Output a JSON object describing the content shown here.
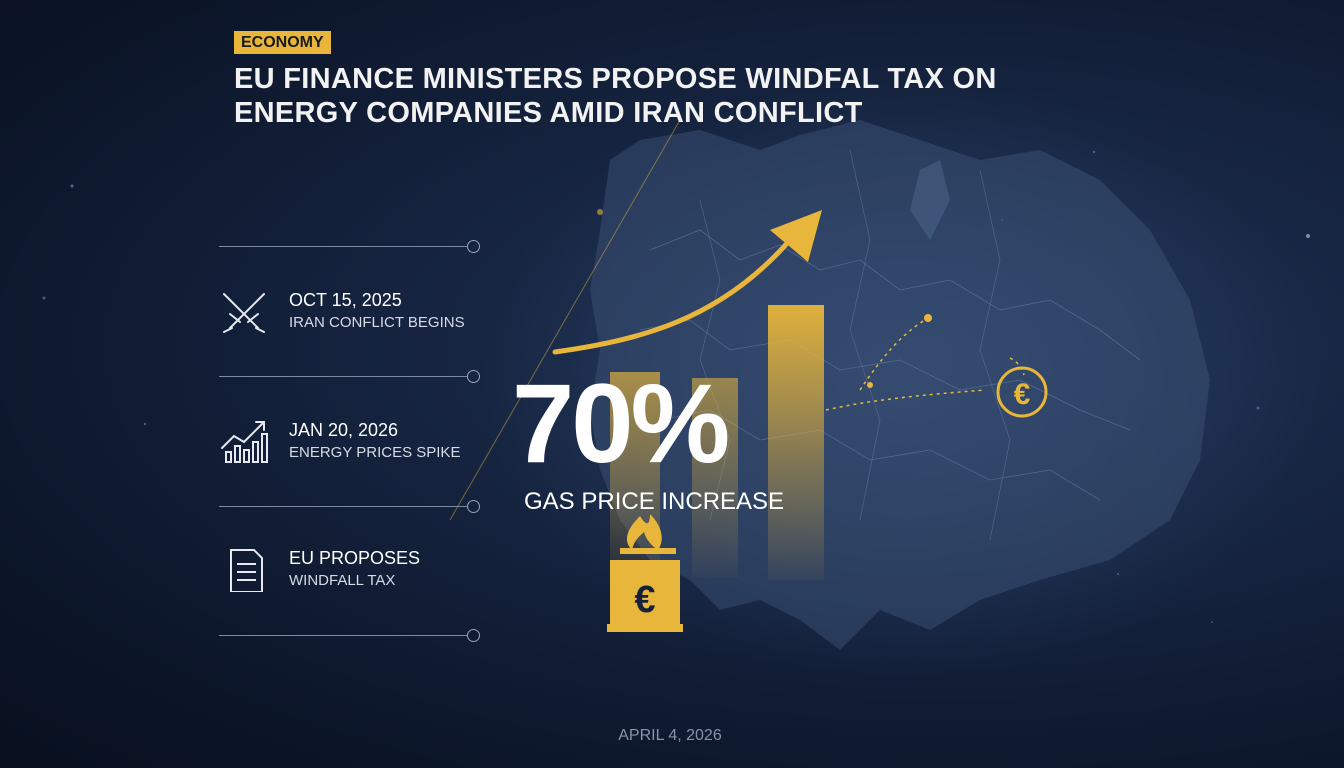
{
  "category": "ECONOMY",
  "headline": "EU FINANCE MINISTERS PROPOSE WINDFAL TAX ON ENERGY COMPANIES AMID IRAN CONFLICT",
  "timeline": [
    {
      "date": "OCT 15, 2025",
      "description": "IRAN CONFLICT BEGINS",
      "icon": "crossed-swords-icon"
    },
    {
      "date": "JAN 20, 2026",
      "description": "ENERGY PRICES SPIKE",
      "icon": "rising-bar-chart-icon"
    },
    {
      "date": "EU PROPOSES",
      "description": "WINDFALL TAX",
      "icon": "document-icon"
    }
  ],
  "stat": {
    "value": "70%",
    "label": "GAS PRICE INCREASE"
  },
  "icons": {
    "currency": "euro-coin-icon",
    "gas_can": "flaming-euro-canister-icon",
    "trend": "upward-arrow-icon"
  },
  "colors": {
    "accent": "#e8b63a",
    "background": "#14223d"
  },
  "footer_date": "APRIL 4, 2026"
}
